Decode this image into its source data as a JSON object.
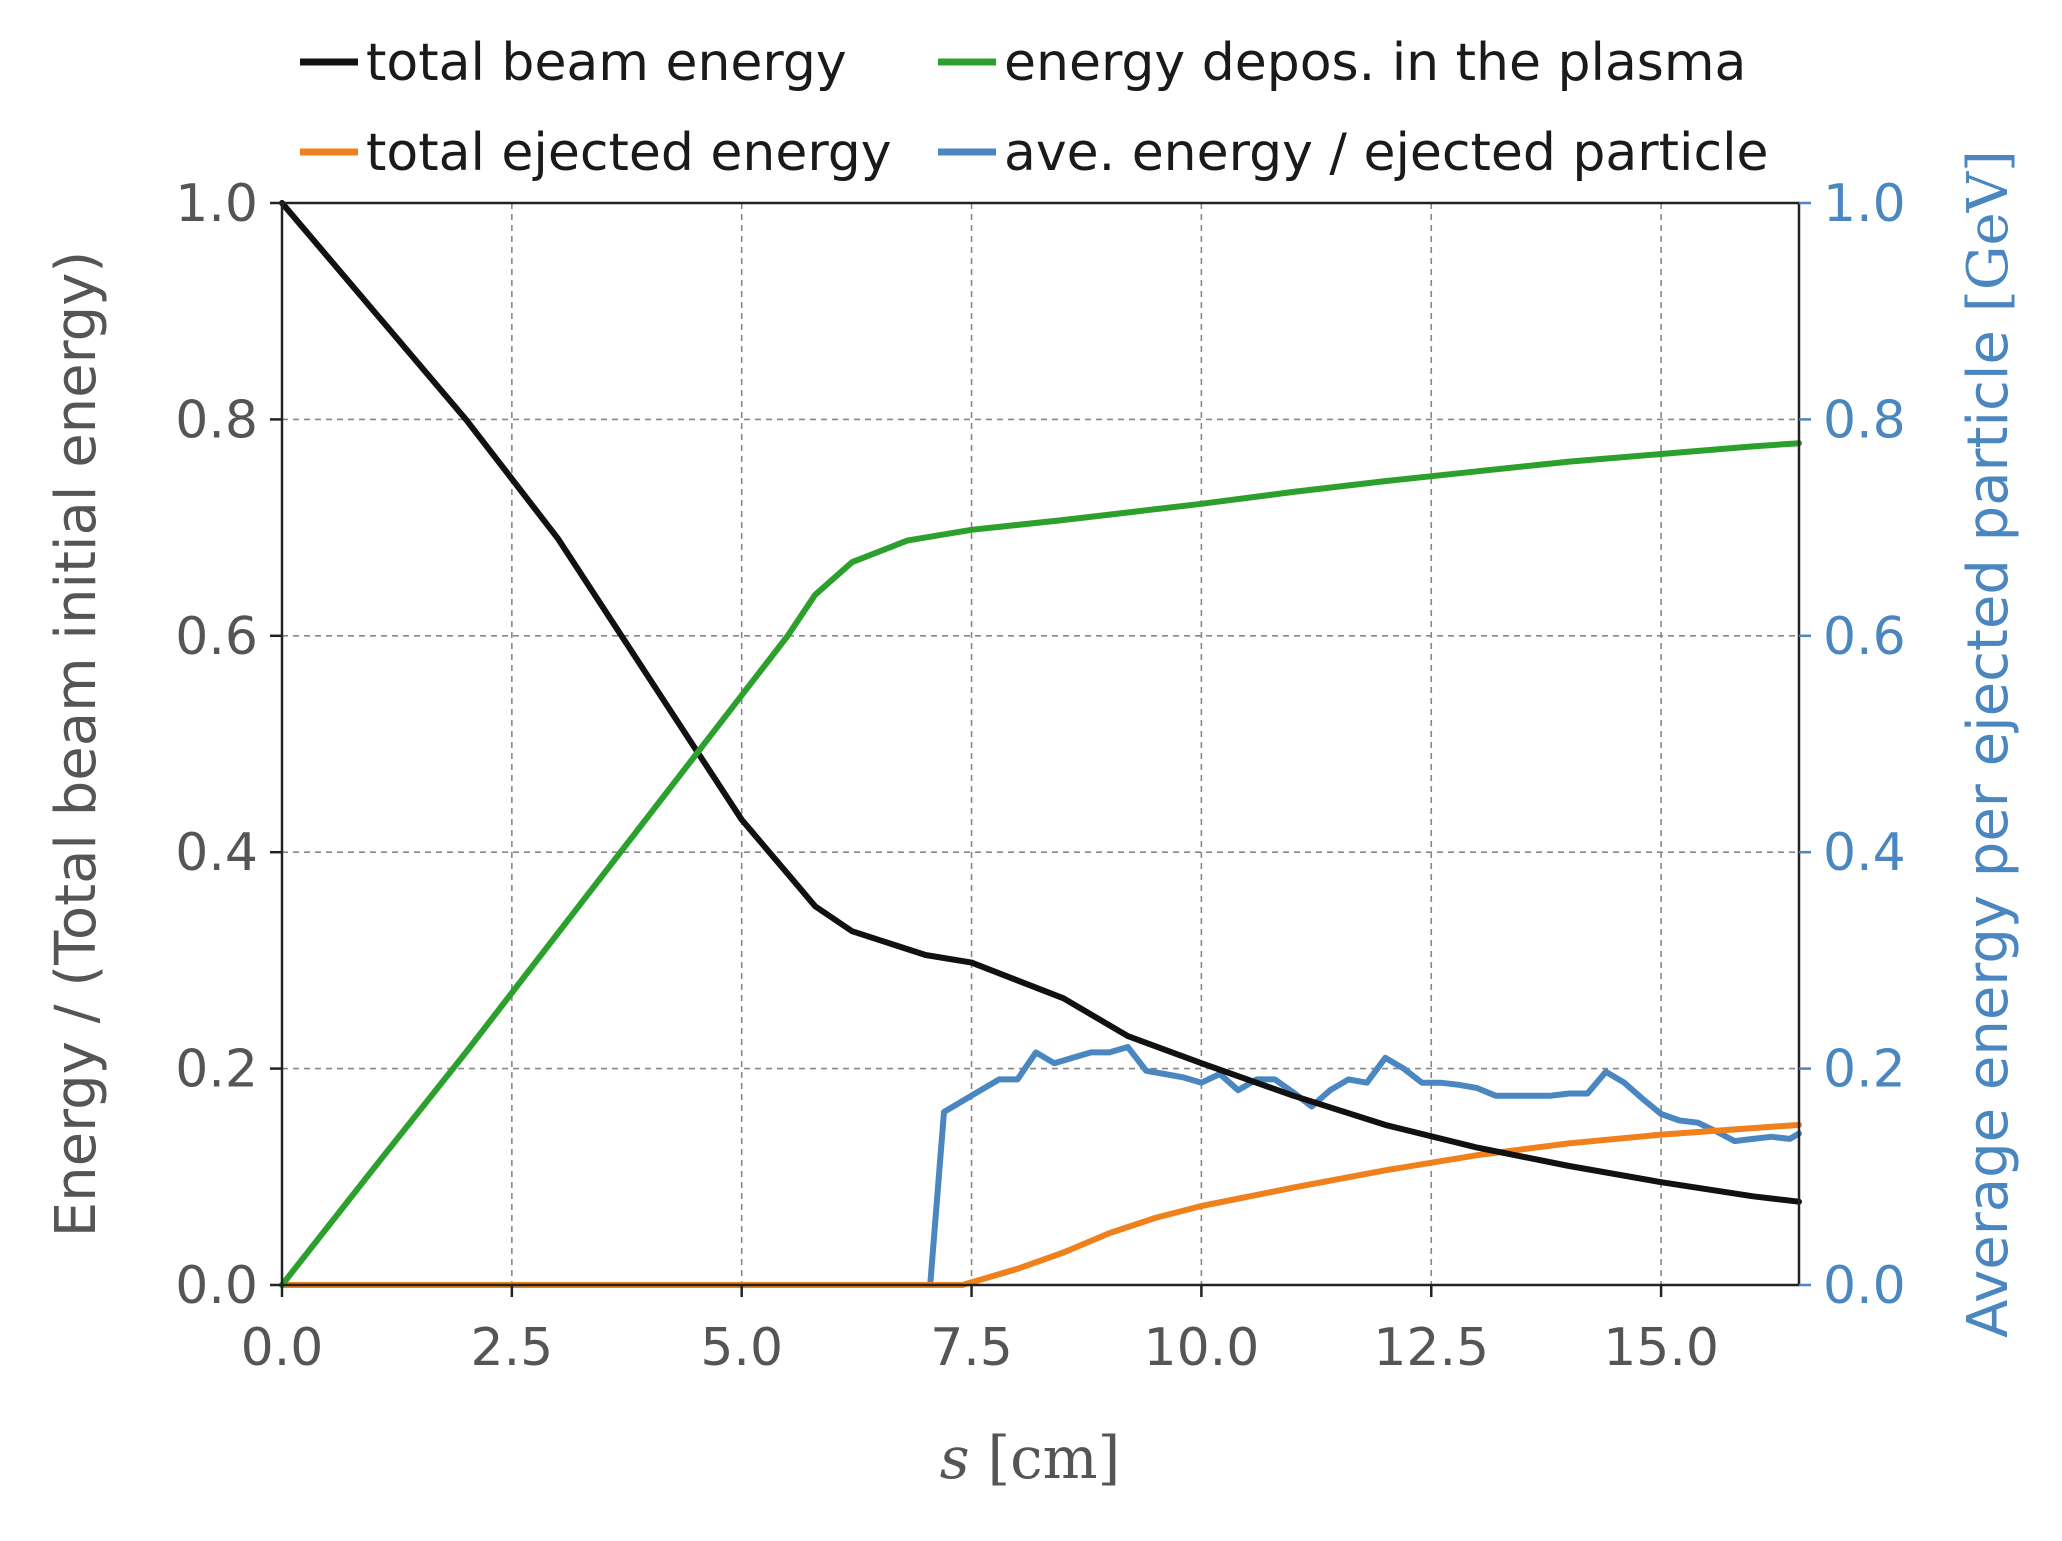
{
  "chart_data": {
    "type": "line",
    "title": "",
    "xlabel_var": "s",
    "xlabel_unit": "[cm]",
    "ylabel": "Energy / (Total beam initial energy)",
    "ylabel_right": "Average energy per ejected particle",
    "ylabel_right_unit": "[GeV]",
    "xlim": [
      0,
      16.5
    ],
    "ylim": [
      0,
      1.0
    ],
    "ylim_right": [
      0,
      1.0
    ],
    "grid": true,
    "legend_position": "top",
    "x_ticks": [
      "0.0",
      "2.5",
      "5.0",
      "7.5",
      "10.0",
      "12.5",
      "15.0"
    ],
    "x_tick_values": [
      0,
      2.5,
      5,
      7.5,
      10,
      12.5,
      15
    ],
    "y_ticks": [
      "0.0",
      "0.2",
      "0.4",
      "0.6",
      "0.8",
      "1.0"
    ],
    "y_tick_values": [
      0,
      0.2,
      0.4,
      0.6,
      0.8,
      1.0
    ],
    "y_ticks_right": [
      "0.0",
      "0.2",
      "0.4",
      "0.6",
      "0.8",
      "1.0"
    ],
    "series": [
      {
        "name": "total beam energy",
        "color": "#111111",
        "axis": "left",
        "points": [
          [
            0,
            1.0
          ],
          [
            1,
            0.9
          ],
          [
            2,
            0.8
          ],
          [
            3,
            0.69
          ],
          [
            4,
            0.56
          ],
          [
            5,
            0.43
          ],
          [
            5.5,
            0.38
          ],
          [
            5.8,
            0.35
          ],
          [
            6.2,
            0.327
          ],
          [
            7,
            0.305
          ],
          [
            7.5,
            0.298
          ],
          [
            8.5,
            0.265
          ],
          [
            9.2,
            0.23
          ],
          [
            10,
            0.205
          ],
          [
            11,
            0.175
          ],
          [
            12,
            0.148
          ],
          [
            13,
            0.127
          ],
          [
            14,
            0.11
          ],
          [
            15,
            0.095
          ],
          [
            16,
            0.082
          ],
          [
            16.5,
            0.077
          ]
        ]
      },
      {
        "name": "total ejected energy",
        "color": "#f0801c",
        "axis": "left",
        "points": [
          [
            0,
            0
          ],
          [
            7.4,
            0
          ],
          [
            8,
            0.015
          ],
          [
            8.5,
            0.03
          ],
          [
            9,
            0.048
          ],
          [
            9.5,
            0.062
          ],
          [
            10,
            0.073
          ],
          [
            11,
            0.09
          ],
          [
            12,
            0.106
          ],
          [
            13,
            0.12
          ],
          [
            14,
            0.131
          ],
          [
            15,
            0.139
          ],
          [
            16,
            0.145
          ],
          [
            16.5,
            0.148
          ]
        ]
      },
      {
        "name": "energy depos. in the plasma",
        "color": "#2ca02c",
        "axis": "left",
        "points": [
          [
            0,
            0
          ],
          [
            1,
            0.108
          ],
          [
            2,
            0.215
          ],
          [
            3,
            0.325
          ],
          [
            4,
            0.435
          ],
          [
            5,
            0.545
          ],
          [
            5.5,
            0.6
          ],
          [
            5.8,
            0.638
          ],
          [
            6.2,
            0.668
          ],
          [
            6.8,
            0.688
          ],
          [
            7.5,
            0.698
          ],
          [
            8.5,
            0.707
          ],
          [
            9,
            0.712
          ],
          [
            10,
            0.722
          ],
          [
            11,
            0.733
          ],
          [
            12,
            0.743
          ],
          [
            13,
            0.752
          ],
          [
            14,
            0.761
          ],
          [
            15,
            0.768
          ],
          [
            16,
            0.775
          ],
          [
            16.5,
            0.778
          ]
        ]
      },
      {
        "name": "ave. energy / ejected particle",
        "color": "#4a86c0",
        "axis": "right",
        "points": [
          [
            0,
            0
          ],
          [
            7.05,
            0
          ],
          [
            7.2,
            0.16
          ],
          [
            7.4,
            0.17
          ],
          [
            7.6,
            0.18
          ],
          [
            7.8,
            0.19
          ],
          [
            8.0,
            0.19
          ],
          [
            8.2,
            0.215
          ],
          [
            8.4,
            0.205
          ],
          [
            8.6,
            0.21
          ],
          [
            8.8,
            0.215
          ],
          [
            9.0,
            0.215
          ],
          [
            9.2,
            0.22
          ],
          [
            9.4,
            0.198
          ],
          [
            9.6,
            0.195
          ],
          [
            9.8,
            0.192
          ],
          [
            10.0,
            0.187
          ],
          [
            10.2,
            0.195
          ],
          [
            10.4,
            0.18
          ],
          [
            10.6,
            0.19
          ],
          [
            10.8,
            0.19
          ],
          [
            11.0,
            0.178
          ],
          [
            11.2,
            0.165
          ],
          [
            11.4,
            0.18
          ],
          [
            11.6,
            0.19
          ],
          [
            11.8,
            0.187
          ],
          [
            12.0,
            0.21
          ],
          [
            12.2,
            0.2
          ],
          [
            12.4,
            0.187
          ],
          [
            12.6,
            0.187
          ],
          [
            12.8,
            0.185
          ],
          [
            13.0,
            0.182
          ],
          [
            13.2,
            0.175
          ],
          [
            13.4,
            0.175
          ],
          [
            13.6,
            0.175
          ],
          [
            13.8,
            0.175
          ],
          [
            14.0,
            0.177
          ],
          [
            14.2,
            0.177
          ],
          [
            14.4,
            0.197
          ],
          [
            14.6,
            0.187
          ],
          [
            14.8,
            0.172
          ],
          [
            15.0,
            0.158
          ],
          [
            15.2,
            0.152
          ],
          [
            15.4,
            0.15
          ],
          [
            15.6,
            0.142
          ],
          [
            15.8,
            0.133
          ],
          [
            16.0,
            0.135
          ],
          [
            16.2,
            0.137
          ],
          [
            16.4,
            0.135
          ],
          [
            16.5,
            0.14
          ]
        ]
      }
    ]
  }
}
